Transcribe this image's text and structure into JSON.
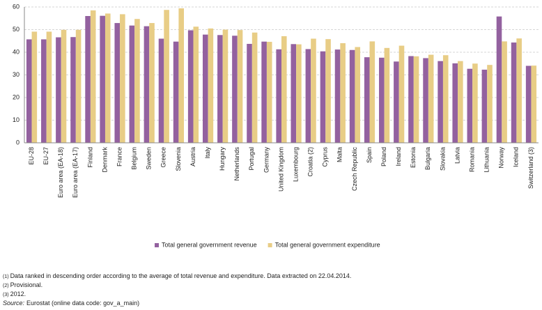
{
  "chart_data": {
    "type": "bar",
    "categories": [
      "EU-28",
      "EU-27",
      "Euro area (EA-18)",
      "Euro area (EA-17)",
      "Finland",
      "Denmark",
      "France",
      "Belgium",
      "Sweden",
      "Greece",
      "Slovenia",
      "Austria",
      "Italy",
      "Hungary",
      "Netherlands",
      "Portugal",
      "Germany",
      "United Kingdom",
      "Luxembourg",
      "Croatia (2)",
      "Cyprus",
      "Malta",
      "Czech Republic",
      "Spain",
      "Poland",
      "Ireland",
      "Estonia",
      "Bulgaria",
      "Slovakia",
      "Latvia",
      "Romania",
      "Lithuania",
      "Norway",
      "Iceland",
      "Switzerland (3)"
    ],
    "series": [
      {
        "name": "Total general government revenue",
        "color": "#93619f",
        "values": [
          45.7,
          45.7,
          46.6,
          46.7,
          56.0,
          56.1,
          52.9,
          51.8,
          51.5,
          46.0,
          44.7,
          49.7,
          47.8,
          47.6,
          47.3,
          43.7,
          44.7,
          41.3,
          43.6,
          41.4,
          40.4,
          41.2,
          41.0,
          37.8,
          37.6,
          35.9,
          38.3,
          37.4,
          36.1,
          35.1,
          32.7,
          32.3,
          55.8,
          44.3,
          34.0
        ]
      },
      {
        "name": "Total general government expenditure",
        "color": "#e8cd86",
        "values": [
          49.1,
          49.1,
          49.9,
          49.9,
          58.5,
          57.1,
          56.8,
          54.7,
          52.9,
          58.7,
          59.4,
          51.3,
          50.5,
          50.0,
          49.8,
          48.7,
          44.6,
          47.1,
          43.5,
          46.0,
          45.8,
          44.0,
          42.3,
          44.8,
          41.9,
          42.9,
          38.2,
          38.9,
          38.7,
          36.1,
          35.0,
          34.4,
          44.8,
          46.1,
          34.1
        ]
      }
    ],
    "ylim": [
      0,
      60
    ],
    "yticks": [
      0,
      10,
      20,
      30,
      40,
      50,
      60
    ],
    "grid": true,
    "legend": "bottom"
  },
  "footnotes": [
    {
      "marker": "(1)",
      "text": "Data ranked in descending order according to the average of total revenue and expenditure. Data extracted on 22.04.2014."
    },
    {
      "marker": "(2)",
      "text": "Provisional."
    },
    {
      "marker": "(3)",
      "text": "2012."
    }
  ],
  "source": {
    "label": "Source:",
    "text": "Eurostat (online data code: gov_a_main)"
  }
}
